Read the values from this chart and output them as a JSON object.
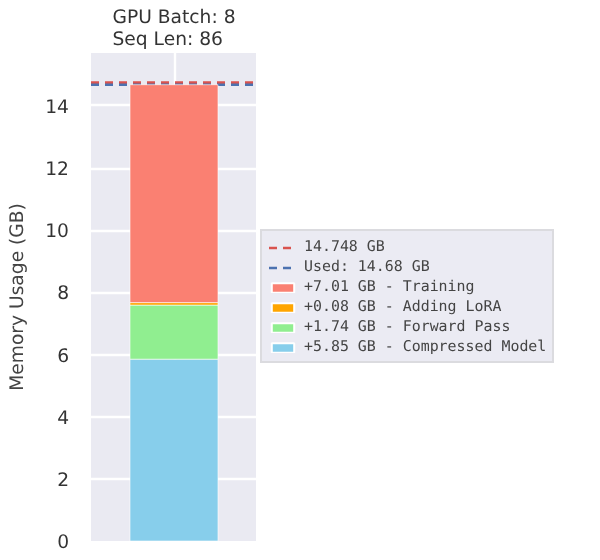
{
  "chart_data": {
    "type": "bar",
    "stacked": true,
    "title": "GPU Batch: 8\nSeq Len: 86",
    "ylabel": "Memory Usage (GB)",
    "categories": [
      null
    ],
    "series": [
      {
        "name": "+5.85 GB - Compressed Model",
        "color": "#87ceeb",
        "values": [
          5.85
        ]
      },
      {
        "name": "+1.74 GB - Forward Pass",
        "color": "#90ee90",
        "values": [
          1.74
        ]
      },
      {
        "name": "+0.08 GB - Adding LoRA",
        "color": "#ffa500",
        "values": [
          0.08
        ]
      },
      {
        "name": "+7.01 GB - Training",
        "color": "#fa8072",
        "values": [
          7.01
        ]
      }
    ],
    "ref_lines": [
      {
        "axis": "y",
        "value": 14.748,
        "label": "14.748 GB",
        "color": "#d9534f",
        "line_style": "dashed"
      },
      {
        "axis": "y",
        "value": 14.68,
        "label": "Used: 14.68 GB",
        "color": "#4c72b0",
        "line_style": "dashed"
      }
    ],
    "ylim": [
      0,
      15.7
    ],
    "yticks": [
      0,
      2,
      4,
      6,
      8,
      10,
      12,
      14
    ],
    "grid": true,
    "legend": "right"
  }
}
